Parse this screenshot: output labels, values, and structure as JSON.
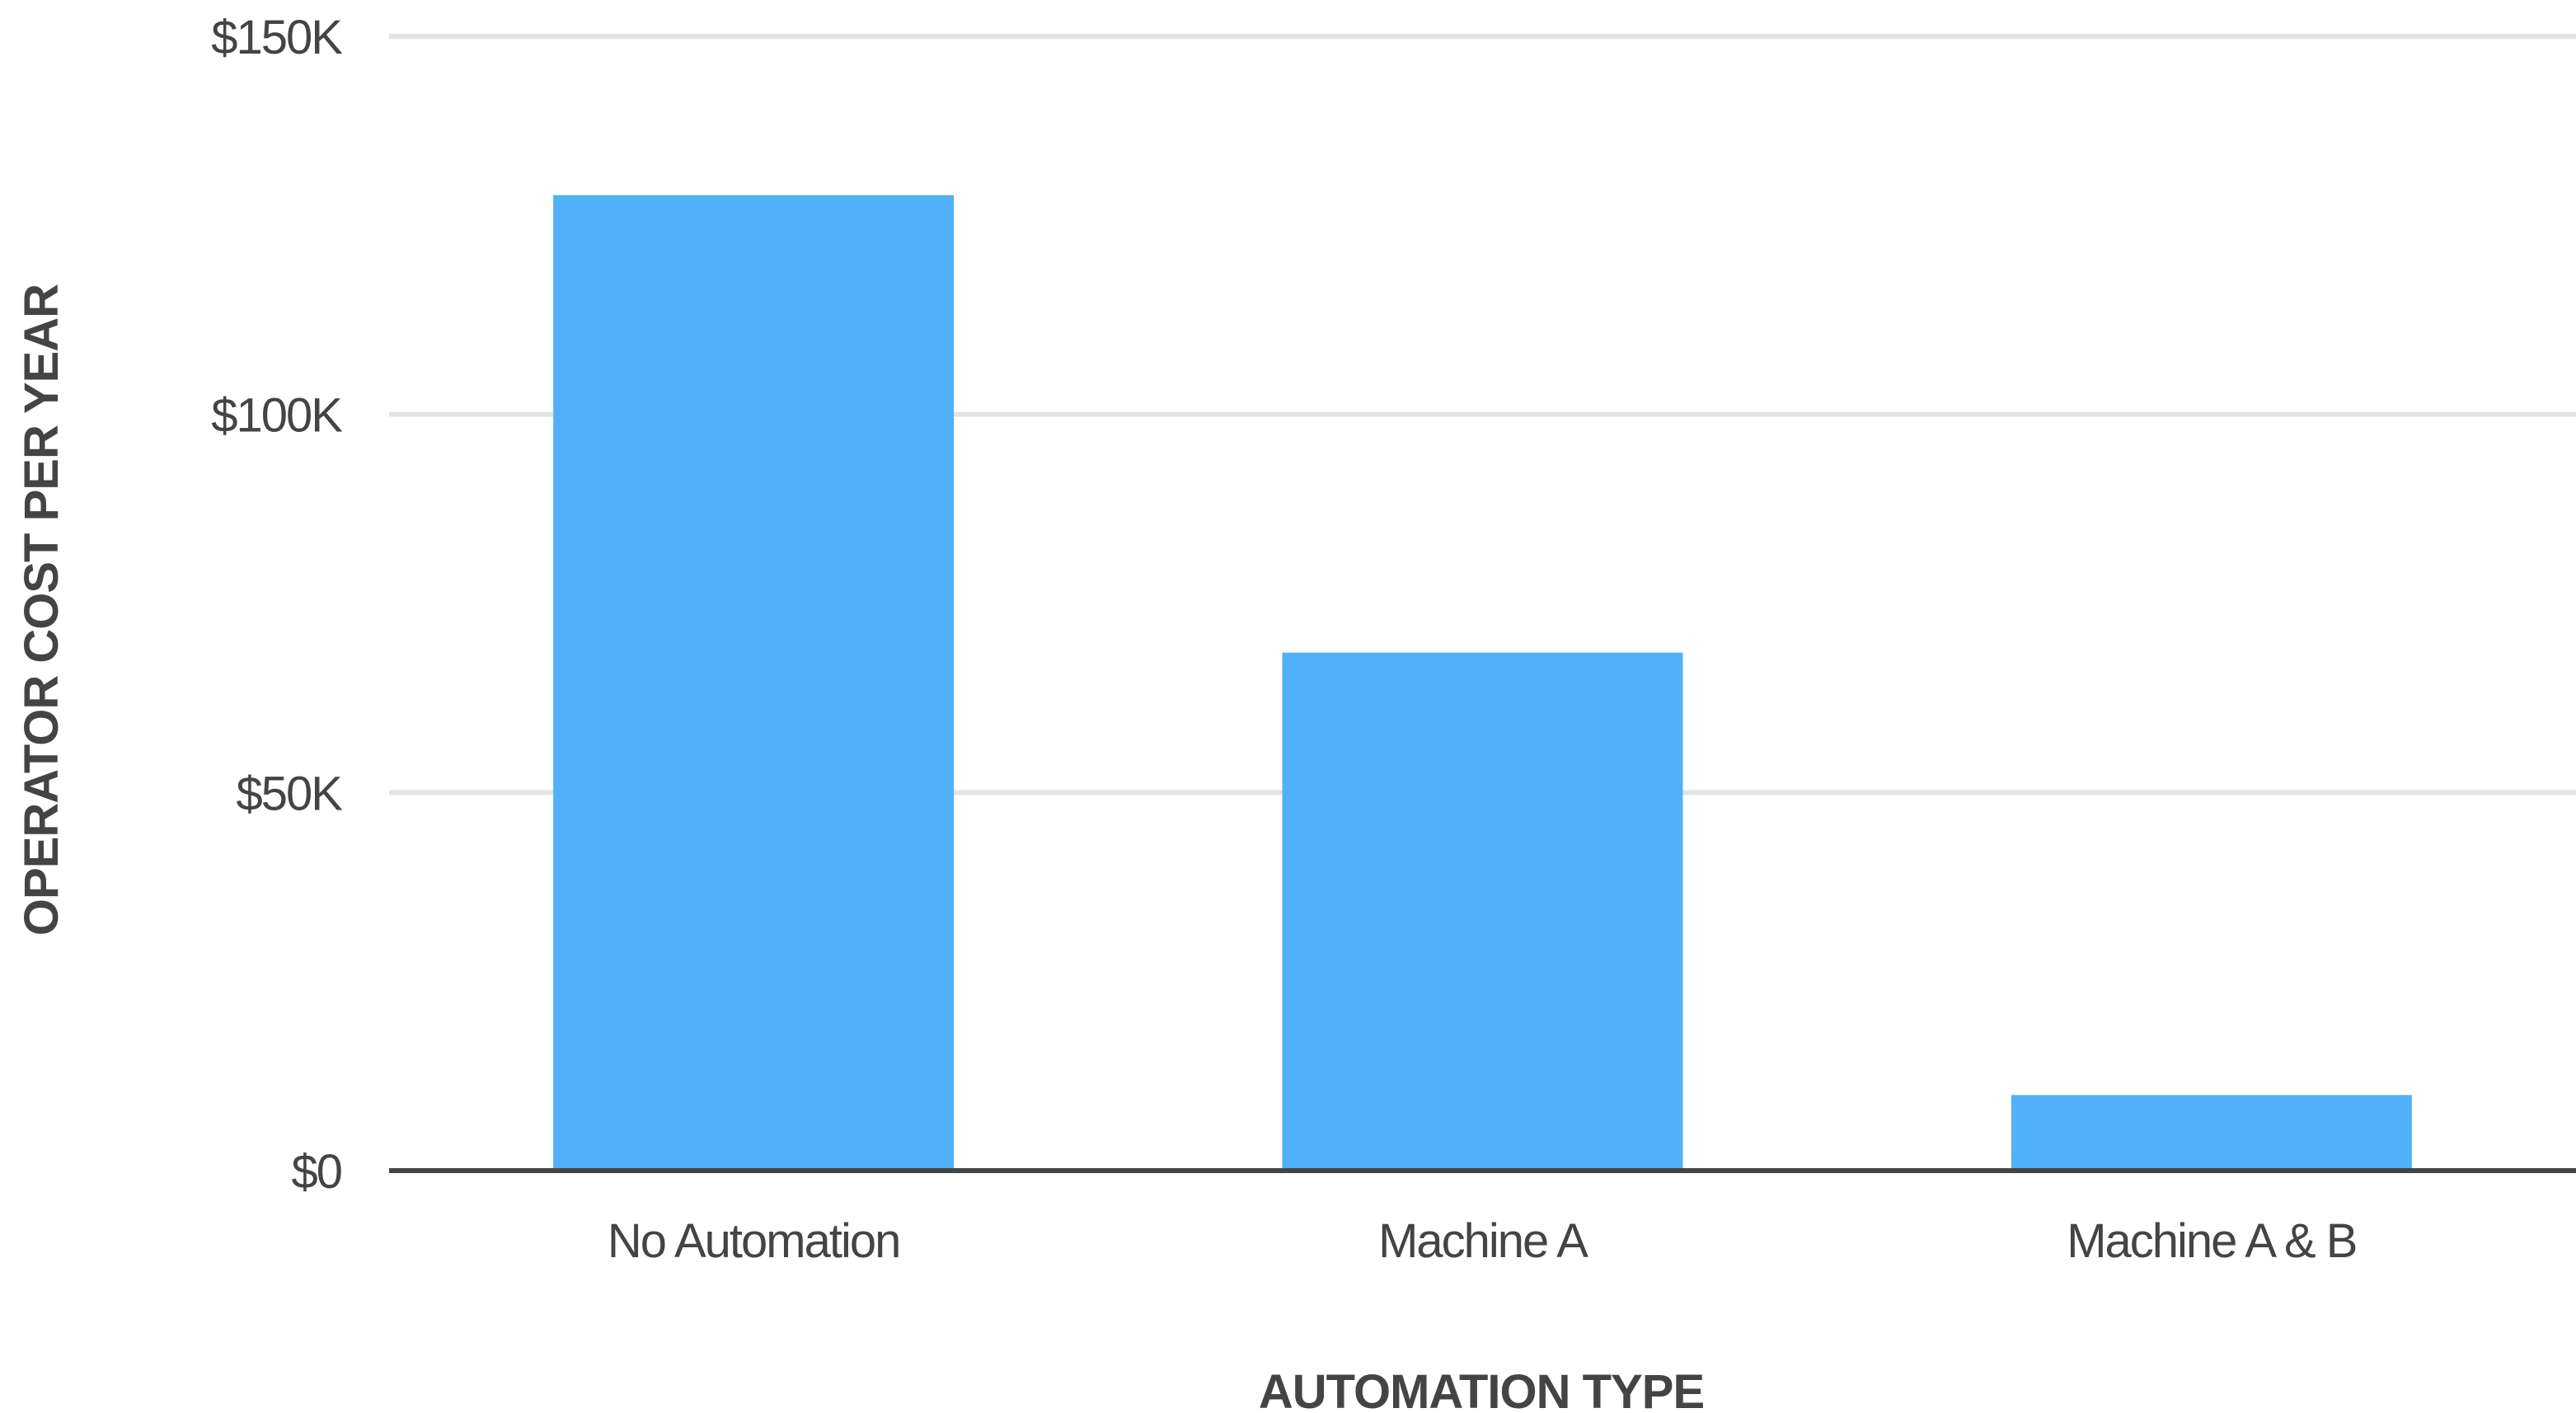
{
  "chart_data": {
    "type": "bar",
    "title": "",
    "xlabel": "AUTOMATION TYPE",
    "ylabel": "OPERATOR COST PER YEAR",
    "categories": [
      "No Automation",
      "Machine A",
      "Machine A & B"
    ],
    "values": [
      129000,
      68500,
      10000
    ],
    "ylim": [
      0,
      150000
    ],
    "yticks": [
      0,
      50000,
      100000,
      150000
    ],
    "ytick_labels": [
      "$0",
      "$50K",
      "$100K",
      "$150K"
    ],
    "grid": true,
    "legend": "none",
    "colors": {
      "bar": "#50B1F8",
      "grid": "#E3E3E3",
      "baseline": "#444444",
      "text": "#444444"
    }
  }
}
